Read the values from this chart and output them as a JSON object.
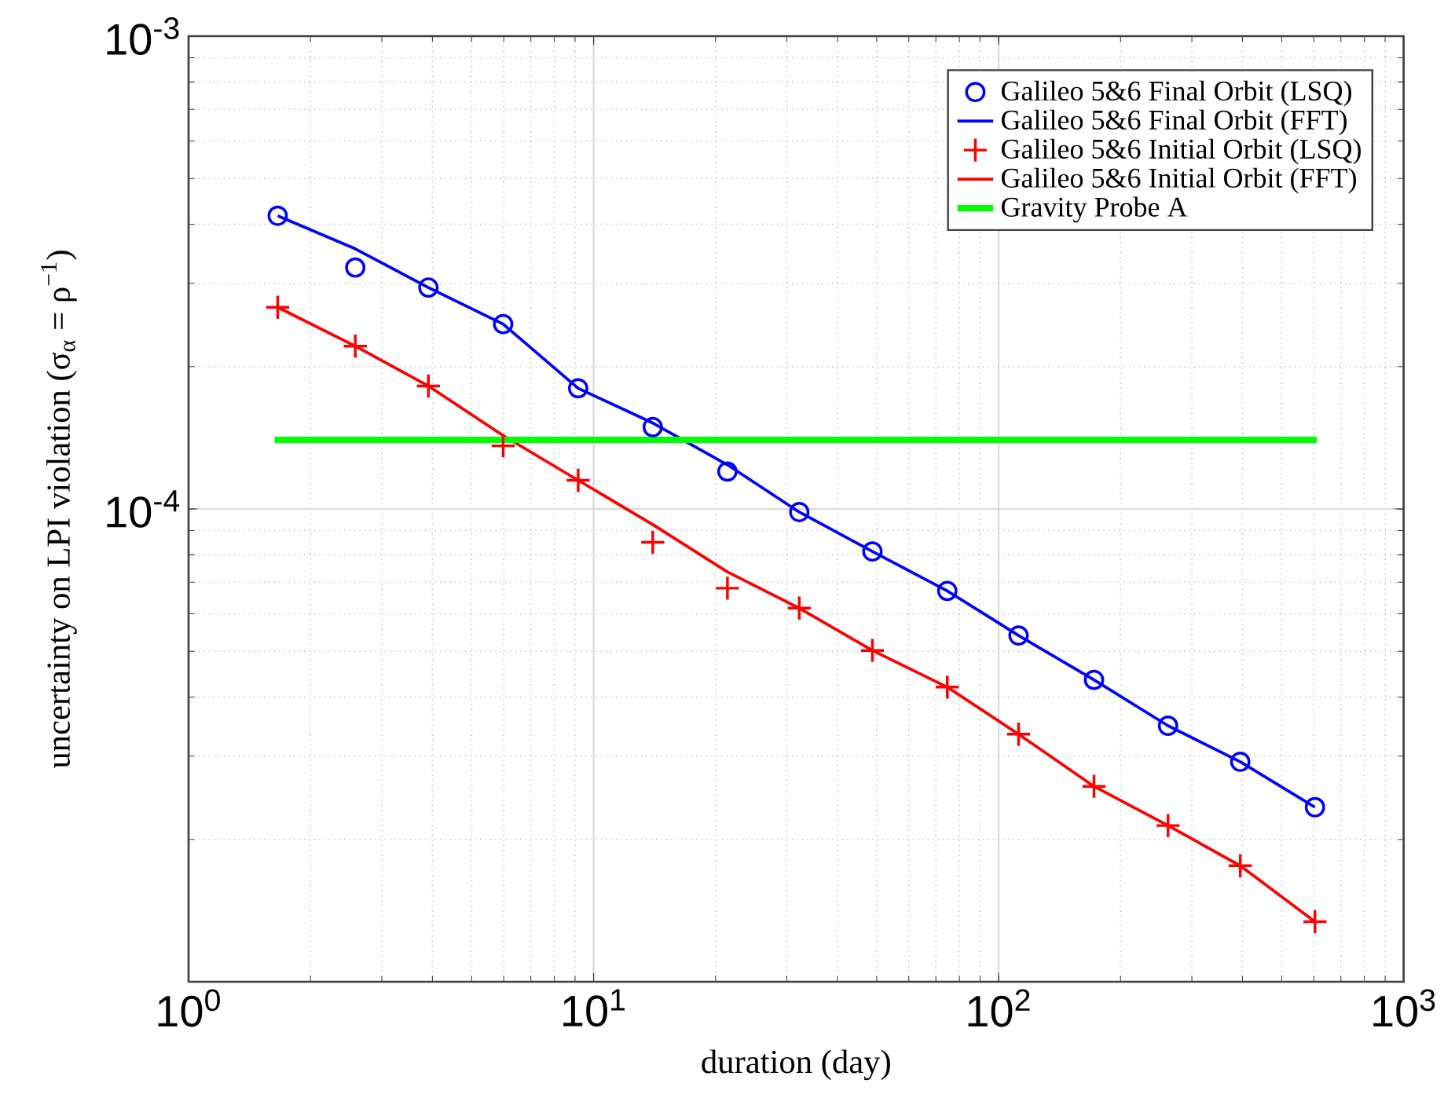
{
  "chart_data": {
    "type": "line",
    "xlabel": "duration (day)",
    "ylabel": "uncertainty on LPI violation (σ$_{α}$ = ρ$^{−1}$)",
    "log": "xy",
    "grid": true,
    "legend": "top right",
    "xlim": [
      1,
      1000
    ],
    "ylim": [
      1e-05,
      0.001
    ],
    "xticks": [
      {
        "value": 1,
        "label": "10$^{0}$"
      },
      {
        "value": 10,
        "label": "10$^{1}$"
      },
      {
        "value": 100,
        "label": "10$^{2}$"
      },
      {
        "value": 1000,
        "label": "10$^{3}$"
      }
    ],
    "yticks": [
      {
        "value": 1e-05,
        "label": null
      },
      {
        "value": 0.0001,
        "label": "10$^{-4}$"
      },
      {
        "value": 0.001,
        "label": "10$^{-3}$"
      }
    ],
    "x": [
      1.66,
      2.58,
      3.91,
      5.98,
      9.16,
      14.0,
      21.4,
      32.2,
      48.8,
      74.7,
      112,
      172,
      262,
      395,
      604
    ],
    "series": [
      {
        "name": "Galileo 5&6 Final Orbit (LSQ)",
        "type": "scatter",
        "marker": "circle",
        "color": "#0000ff",
        "values": [
          0.000417,
          0.000324,
          0.000294,
          0.000246,
          0.00018,
          0.000149,
          0.00012,
          9.85e-05,
          8.13e-05,
          6.71e-05,
          5.4e-05,
          4.35e-05,
          3.48e-05,
          2.92e-05,
          2.34e-05
        ]
      },
      {
        "name": "Galileo 5&6 Final Orbit (FFT)",
        "marker": "none",
        "line_style": "solid",
        "color": "#0000ff",
        "values": [
          0.000417,
          0.000355,
          0.000294,
          0.000246,
          0.00018,
          0.000152,
          0.000124,
          9.85e-05,
          8.13e-05,
          6.71e-05,
          5.4e-05,
          4.35e-05,
          3.48e-05,
          2.92e-05,
          2.34e-05
        ]
      },
      {
        "name": "Galileo 5&6 Initial Orbit (LSQ)",
        "type": "scatter",
        "marker": "cross",
        "color": "#ff0000",
        "values": [
          0.000267,
          0.000221,
          0.000182,
          0.000136,
          0.000115,
          8.5e-05,
          6.8e-05,
          6.17e-05,
          5.02e-05,
          4.2e-05,
          3.34e-05,
          2.59e-05,
          2.14e-05,
          1.76e-05,
          1.34e-05
        ]
      },
      {
        "name": "Galileo 5&6 Initial Orbit (FFT)",
        "marker": "none",
        "line_style": "solid",
        "color": "#ff0000",
        "values": [
          0.000267,
          0.000221,
          0.000182,
          0.000143,
          0.000115,
          9.27e-05,
          7.36e-05,
          6.17e-05,
          5.02e-05,
          4.2e-05,
          3.34e-05,
          2.59e-05,
          2.14e-05,
          1.76e-05,
          1.34e-05
        ]
      },
      {
        "name": "Gravity Probe A",
        "marker": "none",
        "line_style": "solid",
        "color": "#00ff00",
        "x": [
          1.63,
          610
        ],
        "values": [
          0.00014,
          0.00014
        ]
      }
    ]
  }
}
